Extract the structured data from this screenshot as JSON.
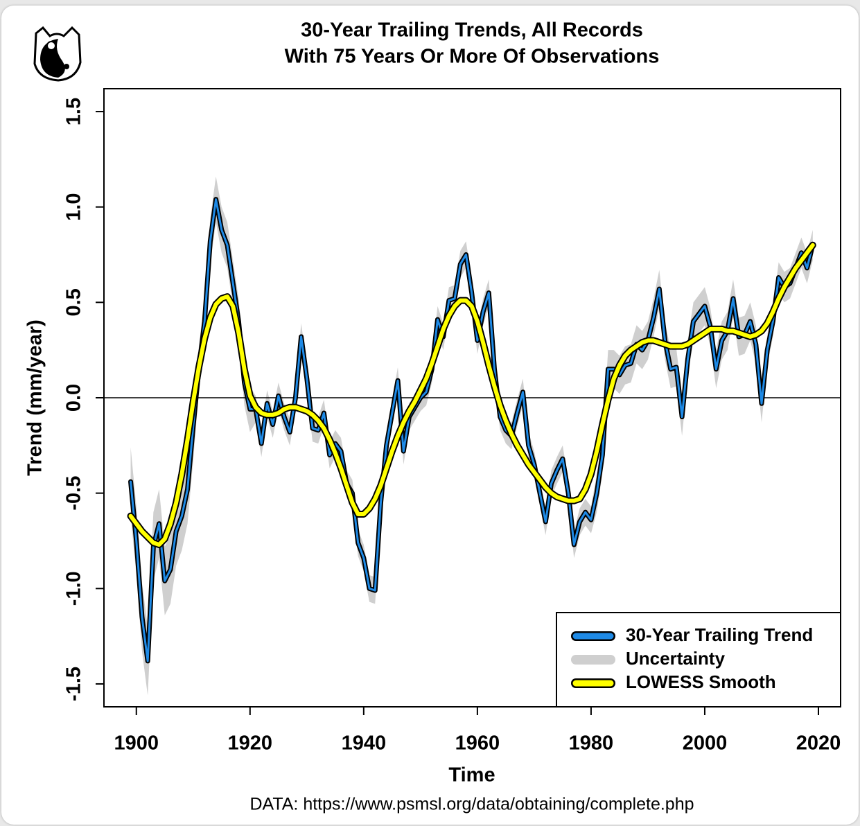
{
  "chart_data": {
    "type": "line",
    "title": [
      "30-Year Trailing Trends, All Records",
      "With 75 Years Or More Of Observations"
    ],
    "xlabel": "Time",
    "ylabel": "Trend (mm/year)",
    "source": "DATA: https://www.psmsl.org/data/obtaining/complete.php",
    "x": [
      1899,
      1900,
      1901,
      1902,
      1903,
      1904,
      1905,
      1906,
      1907,
      1908,
      1909,
      1910,
      1911,
      1912,
      1913,
      1914,
      1915,
      1916,
      1917,
      1918,
      1919,
      1920,
      1921,
      1922,
      1923,
      1924,
      1925,
      1926,
      1927,
      1928,
      1929,
      1930,
      1931,
      1932,
      1933,
      1934,
      1935,
      1936,
      1937,
      1938,
      1939,
      1940,
      1941,
      1942,
      1943,
      1944,
      1945,
      1946,
      1947,
      1948,
      1949,
      1950,
      1951,
      1952,
      1953,
      1954,
      1955,
      1956,
      1957,
      1958,
      1959,
      1960,
      1961,
      1962,
      1963,
      1964,
      1965,
      1966,
      1967,
      1968,
      1969,
      1970,
      1971,
      1972,
      1973,
      1974,
      1975,
      1976,
      1977,
      1978,
      1979,
      1980,
      1981,
      1982,
      1983,
      1984,
      1985,
      1986,
      1987,
      1988,
      1989,
      1990,
      1991,
      1992,
      1993,
      1994,
      1995,
      1996,
      1997,
      1998,
      1999,
      2000,
      2001,
      2002,
      2003,
      2004,
      2005,
      2006,
      2007,
      2008,
      2009,
      2010,
      2011,
      2012,
      2013,
      2014,
      2015,
      2016,
      2017,
      2018,
      2019
    ],
    "series": [
      {
        "name": "30-Year Trailing Trend",
        "color": "#1e8ae6",
        "values": [
          -0.44,
          -0.75,
          -1.15,
          -1.38,
          -0.78,
          -0.66,
          -0.96,
          -0.9,
          -0.7,
          -0.62,
          -0.48,
          -0.15,
          0.15,
          0.4,
          0.82,
          1.04,
          0.88,
          0.8,
          0.6,
          0.4,
          0.08,
          -0.06,
          -0.06,
          -0.24,
          -0.03,
          -0.14,
          0.01,
          -0.1,
          -0.18,
          0.0,
          0.32,
          0.1,
          -0.16,
          -0.17,
          -0.08,
          -0.3,
          -0.24,
          -0.28,
          -0.45,
          -0.5,
          -0.76,
          -0.84,
          -1.0,
          -1.01,
          -0.55,
          -0.25,
          -0.08,
          0.09,
          -0.28,
          -0.1,
          -0.05,
          0.0,
          0.03,
          0.15,
          0.41,
          0.32,
          0.51,
          0.52,
          0.7,
          0.75,
          0.55,
          0.3,
          0.45,
          0.55,
          0.15,
          -0.1,
          -0.17,
          -0.2,
          -0.08,
          0.03,
          -0.25,
          -0.35,
          -0.5,
          -0.65,
          -0.45,
          -0.38,
          -0.32,
          -0.5,
          -0.77,
          -0.65,
          -0.6,
          -0.64,
          -0.5,
          -0.3,
          0.15,
          0.15,
          0.12,
          0.17,
          0.18,
          0.28,
          0.25,
          0.3,
          0.42,
          0.57,
          0.3,
          0.15,
          0.16,
          -0.1,
          0.2,
          0.4,
          0.44,
          0.48,
          0.37,
          0.15,
          0.3,
          0.35,
          0.52,
          0.32,
          0.33,
          0.4,
          0.28,
          -0.03,
          0.25,
          0.4,
          0.63,
          0.58,
          0.6,
          0.68,
          0.76,
          0.68,
          0.8
        ]
      },
      {
        "name": "Uncertainty",
        "color": "#cfcfcf",
        "values": [
          0.18,
          0.18,
          0.18,
          0.18,
          0.18,
          0.18,
          0.18,
          0.18,
          0.18,
          0.18,
          0.18,
          0.18,
          0.12,
          0.12,
          0.12,
          0.12,
          0.12,
          0.12,
          0.12,
          0.12,
          0.12,
          0.12,
          0.07,
          0.07,
          0.07,
          0.07,
          0.07,
          0.07,
          0.07,
          0.07,
          0.07,
          0.07,
          0.07,
          0.07,
          0.07,
          0.07,
          0.07,
          0.07,
          0.07,
          0.07,
          0.07,
          0.07,
          0.07,
          0.07,
          0.07,
          0.07,
          0.07,
          0.07,
          0.07,
          0.07,
          0.07,
          0.07,
          0.07,
          0.07,
          0.07,
          0.07,
          0.07,
          0.07,
          0.07,
          0.07,
          0.07,
          0.07,
          0.07,
          0.07,
          0.07,
          0.07,
          0.07,
          0.07,
          0.07,
          0.07,
          0.07,
          0.07,
          0.07,
          0.07,
          0.07,
          0.07,
          0.07,
          0.07,
          0.07,
          0.07,
          0.07,
          0.07,
          0.1,
          0.1,
          0.1,
          0.1,
          0.1,
          0.1,
          0.1,
          0.1,
          0.1,
          0.1,
          0.1,
          0.1,
          0.1,
          0.1,
          0.1,
          0.1,
          0.1,
          0.1,
          0.1,
          0.1,
          0.1,
          0.1,
          0.1,
          0.1,
          0.1,
          0.1,
          0.1,
          0.1,
          0.1,
          0.1,
          0.08,
          0.08,
          0.08,
          0.08,
          0.08,
          0.08,
          0.08,
          0.08,
          0.08
        ]
      },
      {
        "name": "LOWESS Smooth",
        "color": "#ffff00",
        "values": [
          -0.62,
          -0.66,
          -0.7,
          -0.73,
          -0.76,
          -0.77,
          -0.74,
          -0.66,
          -0.55,
          -0.4,
          -0.22,
          -0.02,
          0.16,
          0.31,
          0.42,
          0.49,
          0.52,
          0.53,
          0.48,
          0.34,
          0.15,
          0.01,
          -0.05,
          -0.08,
          -0.09,
          -0.09,
          -0.08,
          -0.06,
          -0.05,
          -0.05,
          -0.06,
          -0.07,
          -0.09,
          -0.12,
          -0.16,
          -0.22,
          -0.29,
          -0.37,
          -0.46,
          -0.55,
          -0.61,
          -0.61,
          -0.58,
          -0.53,
          -0.46,
          -0.37,
          -0.28,
          -0.2,
          -0.13,
          -0.07,
          -0.02,
          0.04,
          0.1,
          0.18,
          0.27,
          0.36,
          0.43,
          0.48,
          0.51,
          0.51,
          0.48,
          0.4,
          0.29,
          0.17,
          0.06,
          -0.04,
          -0.12,
          -0.19,
          -0.25,
          -0.3,
          -0.35,
          -0.39,
          -0.43,
          -0.47,
          -0.5,
          -0.52,
          -0.53,
          -0.54,
          -0.54,
          -0.53,
          -0.48,
          -0.4,
          -0.28,
          -0.14,
          -0.01,
          0.1,
          0.17,
          0.22,
          0.25,
          0.27,
          0.29,
          0.3,
          0.3,
          0.29,
          0.28,
          0.27,
          0.27,
          0.27,
          0.28,
          0.3,
          0.32,
          0.34,
          0.36,
          0.36,
          0.36,
          0.35,
          0.35,
          0.34,
          0.33,
          0.32,
          0.33,
          0.35,
          0.39,
          0.45,
          0.52,
          0.58,
          0.63,
          0.68,
          0.72,
          0.76,
          0.8
        ]
      }
    ],
    "xlim": [
      1894.3,
      2023.9
    ],
    "xticks": [
      1900,
      1920,
      1940,
      1960,
      1980,
      2000,
      2020
    ],
    "ylim": [
      -1.62,
      1.62
    ],
    "yticks": [
      -1.5,
      {
        "value": -1,
        "label": "-1.0"
      },
      -0.5,
      {
        "value": 0,
        "label": "0.0"
      },
      0.5,
      {
        "value": 1,
        "label": "1.0"
      },
      1.5
    ],
    "hline": 0,
    "legend": "bottom-right"
  }
}
